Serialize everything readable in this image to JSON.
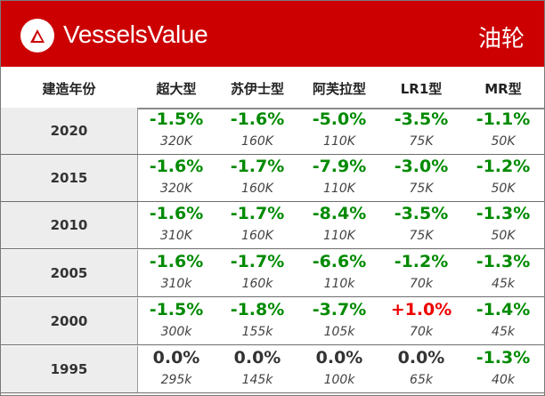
{
  "header": {
    "brand": "VesselsValue",
    "ship_type": "油轮",
    "bg_color": "#cc0000"
  },
  "columns": {
    "year": "建造年份",
    "c1": "超大型",
    "c2": "苏伊士型",
    "c3": "阿芙拉型",
    "c4": "LR1型",
    "c5": "MR型"
  },
  "colors": {
    "negative": "#008a00",
    "positive": "#ee0000",
    "neutral": "#333333"
  },
  "rows": [
    {
      "year": "2020",
      "pct": [
        "-1.5%",
        "-1.6%",
        "-5.0%",
        "-3.5%",
        "-1.1%"
      ],
      "val": [
        "320K",
        "160K",
        "110K",
        "75K",
        "50K"
      ]
    },
    {
      "year": "2015",
      "pct": [
        "-1.6%",
        "-1.7%",
        "-7.9%",
        "-3.0%",
        "-1.2%"
      ],
      "val": [
        "320K",
        "160K",
        "110K",
        "75K",
        "50K"
      ]
    },
    {
      "year": "2010",
      "pct": [
        "-1.6%",
        "-1.7%",
        "-8.4%",
        "-3.5%",
        "-1.3%"
      ],
      "val": [
        "310K",
        "160K",
        "110K",
        "75K",
        "50K"
      ]
    },
    {
      "year": "2005",
      "pct": [
        "-1.6%",
        "-1.7%",
        "-6.6%",
        "-1.2%",
        "-1.3%"
      ],
      "val": [
        "310k",
        "160k",
        "110k",
        "70k",
        "45k"
      ]
    },
    {
      "year": "2000",
      "pct": [
        "-1.5%",
        "-1.8%",
        "-3.7%",
        "+1.0%",
        "-1.4%"
      ],
      "val": [
        "300k",
        "155k",
        "105k",
        "70k",
        "45k"
      ]
    },
    {
      "year": "1995",
      "pct": [
        "0.0%",
        "0.0%",
        "0.0%",
        "0.0%",
        "-1.3%"
      ],
      "val": [
        "295k",
        "145k",
        "100k",
        "65k",
        "40k"
      ]
    }
  ]
}
